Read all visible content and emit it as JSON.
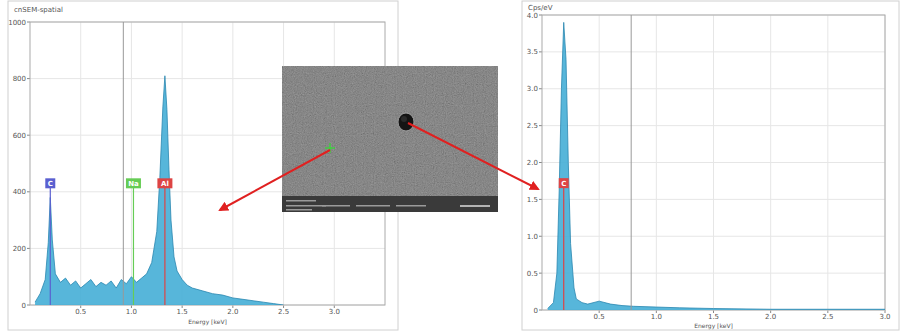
{
  "chart_data": [
    {
      "type": "area",
      "title": "cnSEM-spatial",
      "x_label": "Energy [keV]",
      "color": "#45aed6",
      "x": [
        0.05,
        0.1,
        0.15,
        0.18,
        0.2,
        0.22,
        0.25,
        0.3,
        0.35,
        0.4,
        0.45,
        0.5,
        0.55,
        0.6,
        0.65,
        0.7,
        0.75,
        0.8,
        0.85,
        0.9,
        0.95,
        1.0,
        1.05,
        1.1,
        1.15,
        1.2,
        1.25,
        1.28,
        1.31,
        1.33,
        1.35,
        1.37,
        1.39,
        1.42,
        1.45,
        1.5,
        1.55,
        1.6,
        1.7,
        1.8,
        1.9,
        2.0,
        2.1,
        2.2,
        2.3,
        2.4,
        2.5
      ],
      "values": [
        10,
        40,
        90,
        220,
        380,
        230,
        110,
        80,
        95,
        70,
        85,
        60,
        75,
        90,
        65,
        80,
        70,
        85,
        60,
        90,
        75,
        100,
        80,
        95,
        110,
        150,
        260,
        450,
        700,
        810,
        690,
        480,
        300,
        170,
        120,
        90,
        70,
        60,
        50,
        40,
        35,
        25,
        20,
        15,
        10,
        5,
        0
      ],
      "xlim": [
        0,
        3.5
      ],
      "xticks": [
        0.5,
        {
          "value": 1,
          "label": "1.0"
        },
        1.5,
        {
          "value": 2,
          "label": "2.0"
        },
        2.5,
        {
          "value": 3,
          "label": "3.0"
        }
      ],
      "ylim": [
        0,
        1000
      ],
      "yticks": [
        0,
        200,
        400,
        600,
        800,
        1000
      ],
      "grid": true,
      "cursor": 0.92,
      "markers": [
        {
          "label": "C",
          "x": 0.2,
          "color": "#5a5fd0"
        },
        {
          "label": "Na",
          "x": 1.02,
          "color": "#66cc55"
        },
        {
          "label": "Al",
          "x": 1.33,
          "color": "#dd4444"
        }
      ]
    },
    {
      "type": "area",
      "title": "Cps/eV",
      "x_label": "Energy [keV]",
      "color": "#45aed6",
      "x": [
        0.05,
        0.1,
        0.13,
        0.15,
        0.17,
        0.19,
        0.21,
        0.23,
        0.25,
        0.28,
        0.3,
        0.35,
        0.4,
        0.5,
        0.6,
        0.7,
        0.8,
        1.0,
        1.2,
        1.5,
        2.0,
        2.5,
        3.0
      ],
      "values": [
        0.02,
        0.1,
        0.5,
        1.6,
        3.0,
        3.9,
        3.4,
        2.0,
        0.9,
        0.3,
        0.15,
        0.1,
        0.08,
        0.12,
        0.08,
        0.06,
        0.05,
        0.04,
        0.03,
        0.02,
        0.01,
        0.01,
        0.01
      ],
      "xlim": [
        0,
        3.0
      ],
      "xticks": [
        0.5,
        {
          "value": 1,
          "label": "1.0"
        },
        1.5,
        {
          "value": 2,
          "label": "2.0"
        },
        2.5,
        {
          "value": 3,
          "label": "3.0"
        }
      ],
      "ylim": [
        0,
        4
      ],
      "yticks": [
        0,
        0.5,
        {
          "value": 1,
          "label": "1.0"
        },
        1.5,
        {
          "value": 2,
          "label": "2.0"
        },
        2.5,
        {
          "value": 3,
          "label": "3.0"
        },
        3.5,
        {
          "value": 4,
          "label": "4.0"
        }
      ],
      "grid": true,
      "cursor": 0.78,
      "markers": [
        {
          "label": "C",
          "x": 0.19,
          "color": "#dd4444"
        }
      ]
    }
  ]
}
